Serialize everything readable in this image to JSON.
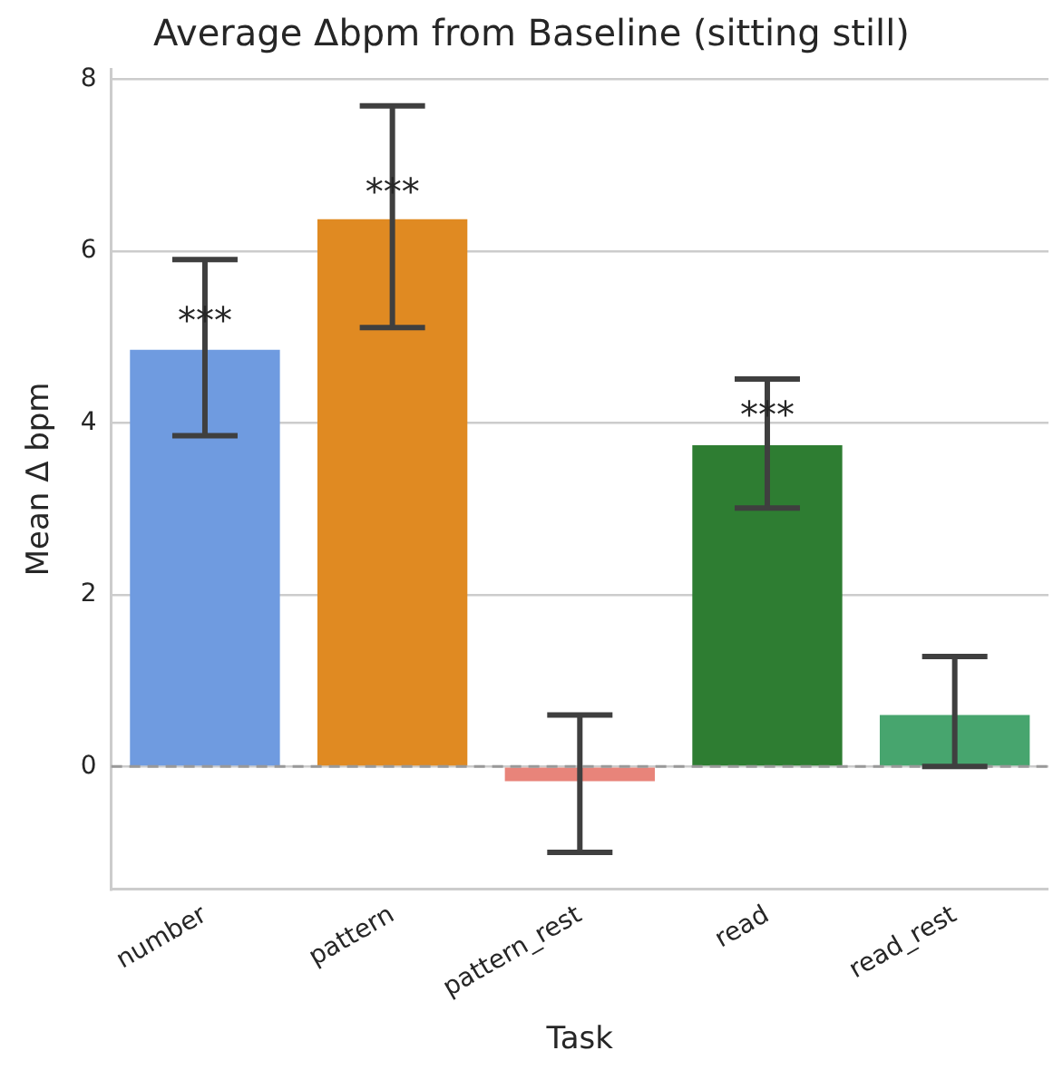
{
  "chart_data": {
    "type": "bar",
    "title": "Average Δbpm from Baseline (sitting still)",
    "xlabel": "Task",
    "ylabel": "Mean Δ bpm",
    "categories": [
      "number",
      "pattern",
      "pattern_rest",
      "read",
      "read_rest"
    ],
    "values": [
      4.85,
      6.37,
      -0.17,
      3.74,
      0.6
    ],
    "colors": [
      "#6f9be0",
      "#e08a22",
      "#e8847a",
      "#2e7d32",
      "#47a56e"
    ],
    "errors": [
      [
        3.85,
        5.9
      ],
      [
        5.11,
        7.69
      ],
      [
        -1.0,
        0.6
      ],
      [
        3.01,
        4.51
      ],
      [
        0.0,
        1.28
      ]
    ],
    "ylim": [
      -1.43,
      8.12
    ],
    "yticks": [
      0,
      2,
      4,
      6,
      8
    ],
    "grid": "y",
    "legend": false,
    "ref_lines": [
      {
        "axis": "y",
        "value": 0,
        "color": "#999999",
        "line_style": "dashed"
      }
    ],
    "annotations": [
      {
        "text": "***",
        "x": "number",
        "y": 5.2
      },
      {
        "text": "***",
        "x": "pattern",
        "y": 6.7
      },
      {
        "text": "***",
        "x": "read",
        "y": 4.1
      }
    ]
  }
}
